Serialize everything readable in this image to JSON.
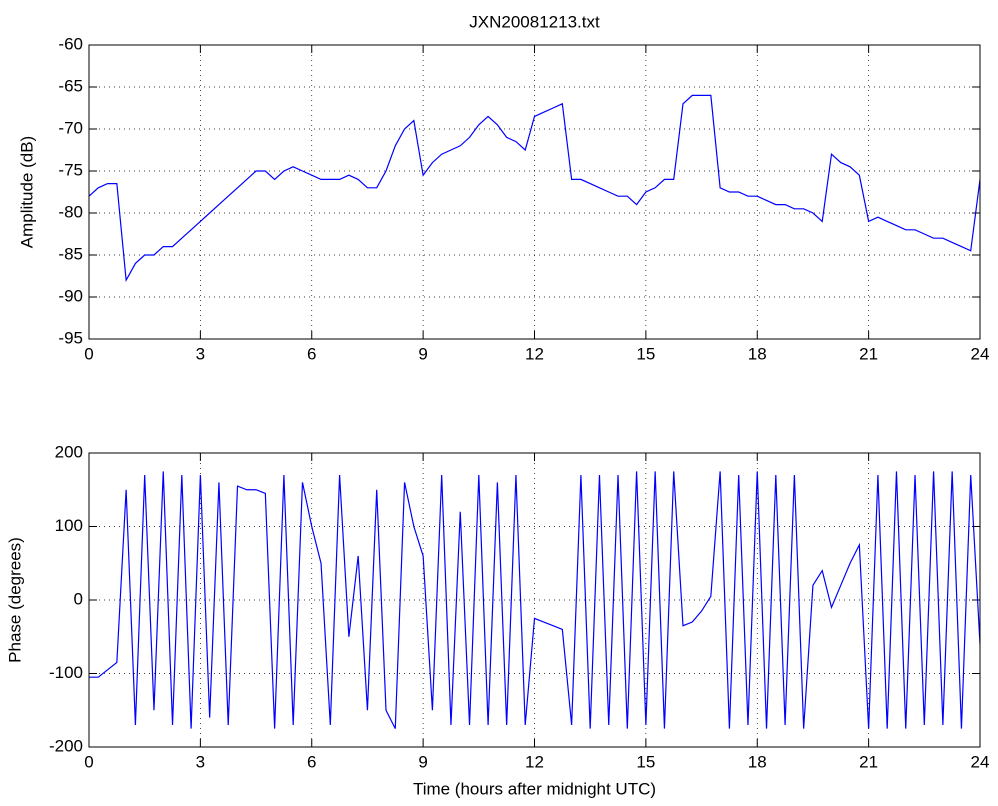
{
  "chart_data": [
    {
      "type": "line",
      "title": "JXN20081213.txt",
      "y_label": "Amplitude (dB)",
      "x": [
        0,
        0.25,
        0.5,
        0.75,
        1,
        1.25,
        1.5,
        1.75,
        2,
        2.25,
        2.5,
        2.75,
        3,
        3.25,
        3.5,
        3.75,
        4,
        4.25,
        4.5,
        4.75,
        5,
        5.25,
        5.5,
        5.75,
        6,
        6.25,
        6.5,
        6.75,
        7,
        7.25,
        7.5,
        7.75,
        8,
        8.25,
        8.5,
        8.75,
        9,
        9.25,
        9.5,
        9.75,
        10,
        10.25,
        10.5,
        10.75,
        11,
        11.25,
        11.5,
        11.75,
        12,
        12.25,
        12.5,
        12.75,
        13,
        13.25,
        13.5,
        13.75,
        14,
        14.25,
        14.5,
        14.75,
        15,
        15.25,
        15.5,
        15.75,
        16,
        16.25,
        16.5,
        16.75,
        17,
        17.25,
        17.5,
        17.75,
        18,
        18.25,
        18.5,
        18.75,
        19,
        19.25,
        19.5,
        19.75,
        20,
        20.25,
        20.5,
        20.75,
        21,
        21.25,
        21.5,
        21.75,
        22,
        22.25,
        22.5,
        22.75,
        23,
        23.25,
        23.5,
        23.75,
        24
      ],
      "values": [
        -78,
        -77,
        -76.5,
        -76.5,
        -88,
        -86,
        -85,
        -85,
        -84,
        -84,
        -83,
        -82,
        -81,
        -80,
        -79,
        -78,
        -77,
        -76,
        -75,
        -75,
        -76,
        -75,
        -74.5,
        -75,
        -75.5,
        -76,
        -76,
        -76,
        -75.5,
        -76,
        -77,
        -77,
        -75,
        -72,
        -70,
        -69,
        -75.5,
        -74,
        -73,
        -72.5,
        -72,
        -71,
        -69.5,
        -68.5,
        -69.5,
        -71,
        -71.5,
        -72.5,
        -68.5,
        -68,
        -67.5,
        -67,
        -76,
        -76,
        -76.5,
        -77,
        -77.5,
        -78,
        -78,
        -79,
        -77.5,
        -77,
        -76,
        -76,
        -67,
        -66,
        -66,
        -66,
        -77,
        -77.5,
        -77.5,
        -78,
        -78,
        -78.5,
        -79,
        -79,
        -79.5,
        -79.5,
        -80,
        -81,
        -73,
        -74,
        -74.5,
        -75.5,
        -81,
        -80.5,
        -81,
        -81.5,
        -82,
        -82,
        -82.5,
        -83,
        -83,
        -83.5,
        -84,
        -84.5,
        -76
      ],
      "color": "#0000ff",
      "xlim": [
        0,
        24
      ],
      "xticks": [
        0,
        3,
        6,
        9,
        12,
        15,
        18,
        21,
        24
      ],
      "ylim": [
        -95,
        -60
      ],
      "yticks": [
        -95,
        -90,
        -85,
        -80,
        -75,
        -70,
        -65,
        -60
      ],
      "grid": true
    },
    {
      "type": "line",
      "x_label": "Time (hours after midnight UTC)",
      "y_label": "Phase (degrees)",
      "x": [
        0,
        0.25,
        0.5,
        0.75,
        1,
        1.25,
        1.5,
        1.75,
        2,
        2.25,
        2.5,
        2.75,
        3,
        3.25,
        3.5,
        3.75,
        4,
        4.25,
        4.5,
        4.75,
        5,
        5.25,
        5.5,
        5.75,
        6,
        6.25,
        6.5,
        6.75,
        7,
        7.25,
        7.5,
        7.75,
        8,
        8.25,
        8.5,
        8.75,
        9,
        9.25,
        9.5,
        9.75,
        10,
        10.25,
        10.5,
        10.75,
        11,
        11.25,
        11.5,
        11.75,
        12,
        12.25,
        12.5,
        12.75,
        13,
        13.25,
        13.5,
        13.75,
        14,
        14.25,
        14.5,
        14.75,
        15,
        15.25,
        15.5,
        15.75,
        16,
        16.25,
        16.5,
        16.75,
        17,
        17.25,
        17.5,
        17.75,
        18,
        18.25,
        18.5,
        18.75,
        19,
        19.25,
        19.5,
        19.75,
        20,
        20.25,
        20.5,
        20.75,
        21,
        21.25,
        21.5,
        21.75,
        22,
        22.25,
        22.5,
        22.75,
        23,
        23.25,
        23.5,
        23.75,
        24
      ],
      "values": [
        -105,
        -105,
        -95,
        -85,
        150,
        -170,
        170,
        -150,
        175,
        -170,
        170,
        -175,
        170,
        -160,
        160,
        -170,
        155,
        150,
        150,
        145,
        -175,
        170,
        -170,
        160,
        100,
        50,
        -170,
        170,
        -50,
        60,
        -150,
        150,
        -150,
        -175,
        160,
        100,
        60,
        -150,
        170,
        -170,
        120,
        -170,
        170,
        -170,
        160,
        -170,
        170,
        -170,
        -25,
        -30,
        -35,
        -40,
        -170,
        170,
        -175,
        170,
        -170,
        170,
        -175,
        175,
        -170,
        175,
        -175,
        175,
        -35,
        -30,
        -15,
        5,
        175,
        -175,
        170,
        -170,
        175,
        -175,
        170,
        -170,
        170,
        -175,
        20,
        40,
        -10,
        20,
        50,
        75,
        -175,
        170,
        -175,
        175,
        -175,
        170,
        -170,
        175,
        -170,
        175,
        -175,
        170,
        -60
      ],
      "color": "#0000ff",
      "xlim": [
        0,
        24
      ],
      "xticks": [
        0,
        3,
        6,
        9,
        12,
        15,
        18,
        21,
        24
      ],
      "ylim": [
        -200,
        200
      ],
      "yticks": [
        -200,
        -100,
        0,
        100,
        200
      ],
      "grid": true
    }
  ]
}
